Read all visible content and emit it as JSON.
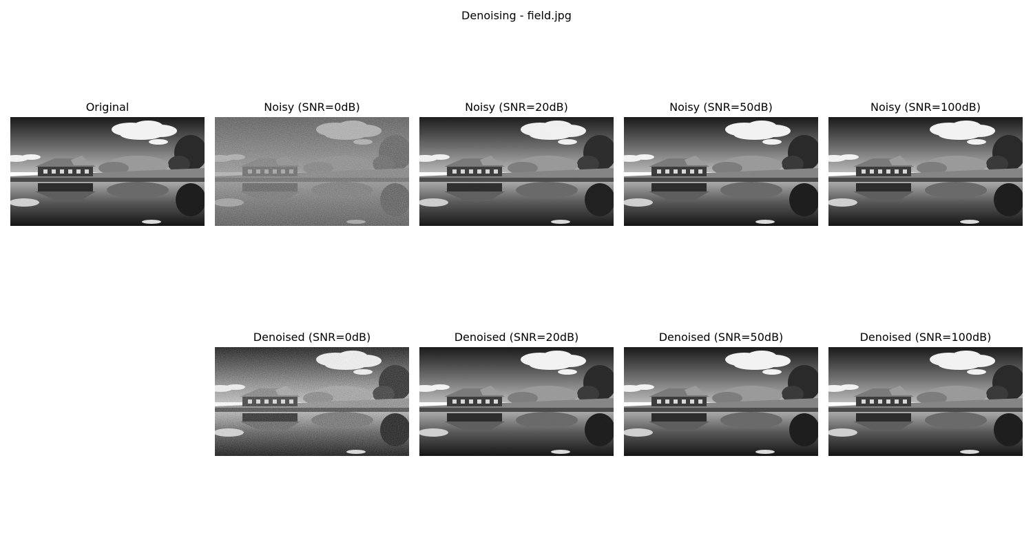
{
  "figure": {
    "title": "Denoising - field.jpg"
  },
  "panels": [
    {
      "title": "Original",
      "noise": 0,
      "restore_noise": 0
    },
    {
      "title": "Noisy (SNR=0dB)",
      "noise": 0.9,
      "restore_noise": 0
    },
    {
      "title": "Noisy (SNR=20dB)",
      "noise": 0.03,
      "restore_noise": 0
    },
    {
      "title": "Noisy (SNR=50dB)",
      "noise": 0.0,
      "restore_noise": 0
    },
    {
      "title": "Noisy (SNR=100dB)",
      "noise": 0.0,
      "restore_noise": 0
    },
    {
      "title": "Denoised (SNR=0dB)",
      "noise": 0,
      "restore_noise": 0.85
    },
    {
      "title": "Denoised (SNR=20dB)",
      "noise": 0,
      "restore_noise": 0.02
    },
    {
      "title": "Denoised (SNR=50dB)",
      "noise": 0,
      "restore_noise": 0.0
    },
    {
      "title": "Denoised (SNR=100dB)",
      "noise": 0,
      "restore_noise": 0.0
    }
  ]
}
